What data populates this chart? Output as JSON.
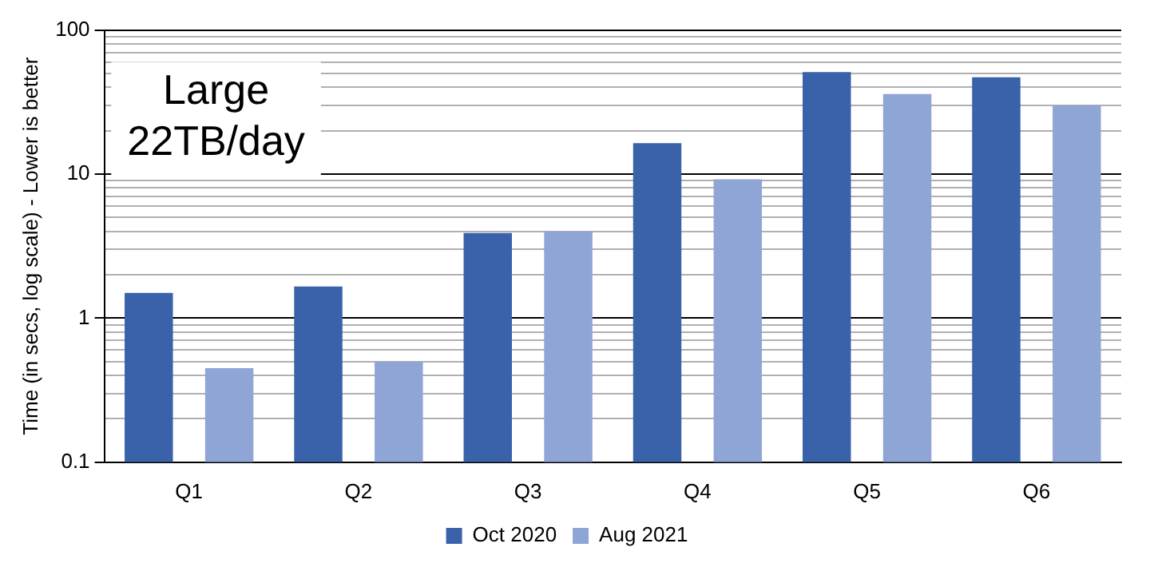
{
  "chart_data": {
    "type": "bar",
    "categories": [
      "Q1",
      "Q2",
      "Q3",
      "Q4",
      "Q5",
      "Q6"
    ],
    "series": [
      {
        "name": "Oct 2020",
        "color": "#3a62ab",
        "values": [
          1.5,
          1.66,
          3.9,
          16.4,
          51,
          47
        ]
      },
      {
        "name": "Aug 2021",
        "color": "#8fa5d6",
        "values": [
          0.45,
          0.5,
          4.0,
          9.2,
          36,
          30
        ]
      }
    ],
    "ylabel": "Time (in secs, log scale) - Lower is better",
    "annotations": [
      "Large\n22TB/day"
    ],
    "log": "y",
    "ylim": [
      0.1,
      100
    ],
    "yticks": [
      0.1,
      {
        "value": 0.2,
        "label": null
      },
      {
        "value": 0.3,
        "label": null
      },
      {
        "value": 0.4,
        "label": null
      },
      {
        "value": 0.5,
        "label": null
      },
      {
        "value": 0.6,
        "label": null
      },
      {
        "value": 0.7,
        "label": null
      },
      {
        "value": 0.8,
        "label": null
      },
      {
        "value": 0.9,
        "label": null
      },
      1,
      {
        "value": 2,
        "label": null
      },
      {
        "value": 3,
        "label": null
      },
      {
        "value": 4,
        "label": null
      },
      {
        "value": 5,
        "label": null
      },
      {
        "value": 6,
        "label": null
      },
      {
        "value": 7,
        "label": null
      },
      {
        "value": 8,
        "label": null
      },
      {
        "value": 9,
        "label": null
      },
      10,
      {
        "value": 20,
        "label": null
      },
      {
        "value": 30,
        "label": null
      },
      {
        "value": 40,
        "label": null
      },
      {
        "value": 50,
        "label": null
      },
      {
        "value": 60,
        "label": null
      },
      {
        "value": 70,
        "label": null
      },
      {
        "value": 80,
        "label": null
      },
      {
        "value": 90,
        "label": null
      },
      100
    ],
    "grid": "y",
    "legend": "bottom"
  }
}
